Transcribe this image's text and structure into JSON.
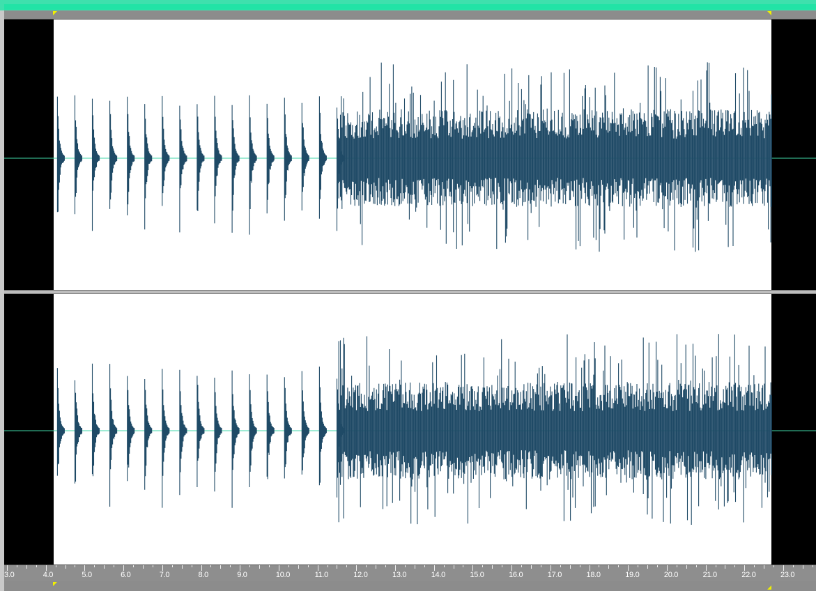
{
  "colors": {
    "accent": "#22e3a6",
    "waveform": "#1f4a66",
    "selection_bg": "#ffffff",
    "unselected_bg": "#000000",
    "centerline": "#3fd7a8",
    "marker": "#f0f000"
  },
  "timeline": {
    "labels": [
      "3.0",
      "4.0",
      "5.0",
      "6.0",
      "7.0",
      "8.0",
      "9.0",
      "10.0",
      "11.0",
      "12.0",
      "13.0",
      "14.0",
      "15.0",
      "16.0",
      "17.0",
      "18.0",
      "19.0",
      "20.0",
      "21.0",
      "22.0",
      "23.0"
    ],
    "unit": "seconds",
    "start": 3.0,
    "end": 23.2
  },
  "selection": {
    "start": 4.2,
    "end": 22.7
  },
  "channels": [
    {
      "id": "left"
    },
    {
      "id": "right"
    }
  ],
  "waveform": {
    "beat_times": [
      4.3,
      4.75,
      5.2,
      5.65,
      6.1,
      6.55,
      7.0,
      7.45,
      7.9,
      8.35,
      8.8,
      9.25,
      9.7,
      10.15,
      10.6,
      11.05,
      11.5
    ],
    "dense_start": 11.55,
    "dense_end": 22.7
  }
}
